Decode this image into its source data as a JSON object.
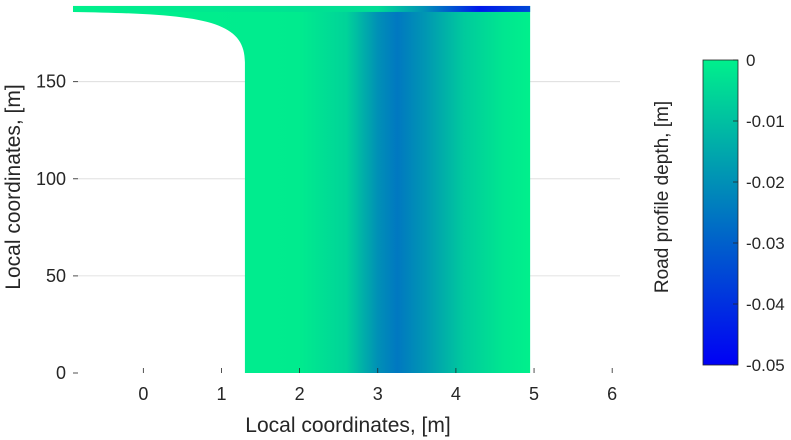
{
  "chart_data": {
    "type": "heatmap",
    "title": "",
    "xlabel": "Local coordinates, [m]",
    "ylabel": "Local coordinates, [m]",
    "xlim": [
      -0.9,
      6.1
    ],
    "ylim": [
      0,
      190
    ],
    "x_ticks": [
      0,
      1,
      2,
      3,
      4,
      5,
      6
    ],
    "y_ticks": [
      0,
      50,
      100,
      150
    ],
    "x_tick_labels": [
      "0",
      "1",
      "2",
      "3",
      "4",
      "5",
      "6"
    ],
    "y_tick_labels": [
      "0",
      "50",
      "100",
      "150"
    ],
    "grid": "horizontal",
    "colorbar": {
      "label": "Road profile depth, [m]",
      "range": [
        -0.05,
        0
      ],
      "ticks": [
        0,
        -0.01,
        -0.02,
        -0.03,
        -0.04,
        -0.05
      ],
      "tick_labels": [
        "0",
        "-0.01",
        "-0.02",
        "-0.03",
        "-0.04",
        "-0.05"
      ],
      "color_high": "#00F08C",
      "color_low": "#0000F5"
    },
    "surface": {
      "x_left_bottom": 1.3,
      "x_left_top": -0.9,
      "curve_start_y": 160,
      "x_right": 4.95,
      "y_top": 189,
      "depth_peak_x": 3.25,
      "depth_peak_value": -0.025,
      "top_edge_peak_x": 4.3,
      "top_edge_peak_value": -0.045
    }
  }
}
